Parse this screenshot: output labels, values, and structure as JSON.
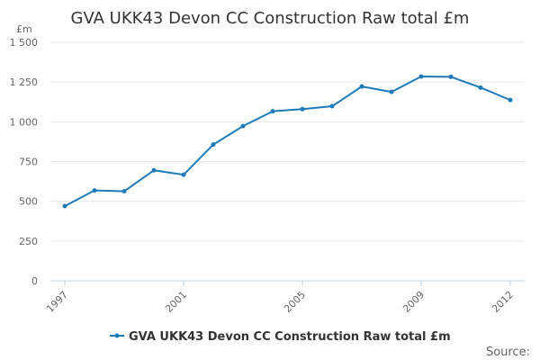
{
  "chart_data": {
    "type": "line",
    "title": "GVA UKK43 Devon CC Construction Raw total £m",
    "ylabel": "£m",
    "xlabel": "",
    "x": [
      1997,
      1998,
      1999,
      2000,
      2001,
      2002,
      2003,
      2004,
      2005,
      2006,
      2007,
      2008,
      2009,
      2010,
      2011,
      2012
    ],
    "x_tick_labels": [
      "1997",
      "2001",
      "2005",
      "2009",
      "2012"
    ],
    "x_tick_values": [
      1997,
      2001,
      2005,
      2009,
      2012
    ],
    "ylim": [
      0,
      1500
    ],
    "y_ticks": [
      0,
      250,
      500,
      750,
      1000,
      1250,
      1500
    ],
    "y_tick_labels": [
      "0",
      "250",
      "500",
      "750",
      "1 000",
      "1 250",
      "1 500"
    ],
    "series": [
      {
        "name": "GVA UKK43 Devon CC Construction Raw total £m",
        "color": "#1f7bb8",
        "values": [
          470,
          568,
          563,
          695,
          667,
          857,
          973,
          1066,
          1080,
          1098,
          1222,
          1188,
          1285,
          1283,
          1215,
          1137
        ]
      }
    ],
    "grid": true,
    "legend_position": "bottom"
  },
  "footer": {
    "source_label": "Source:"
  }
}
